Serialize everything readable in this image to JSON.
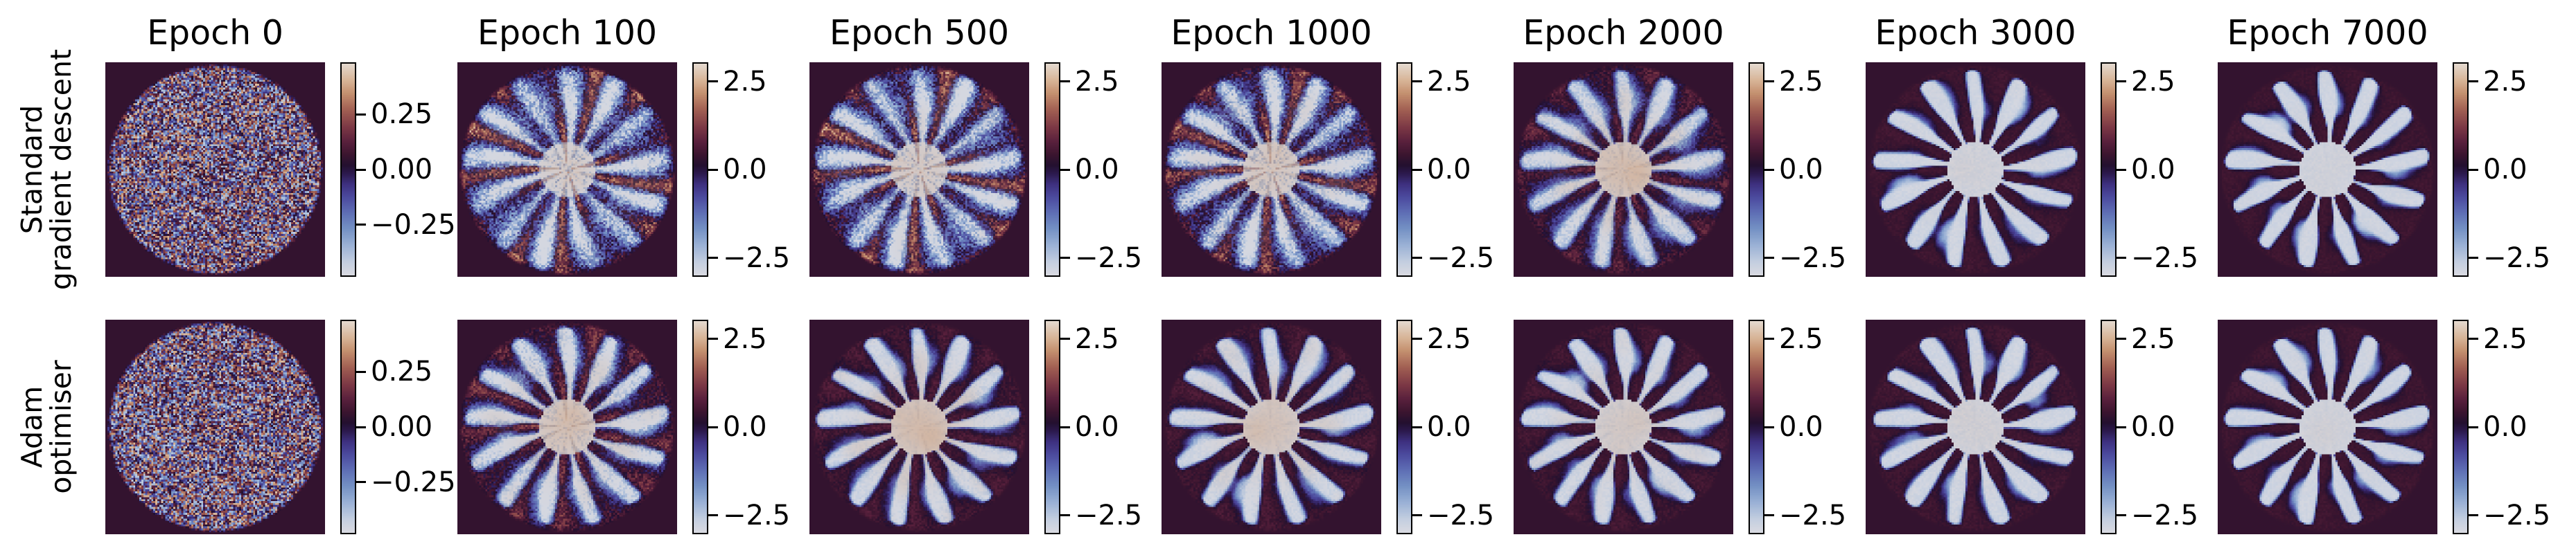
{
  "figure": {
    "background_color": "#ffffff",
    "text_color": "#000000",
    "rows": [
      {
        "label": "Standard\ngradient descent"
      },
      {
        "label": "Adam\noptimiser"
      }
    ],
    "columns": [
      "Epoch 0",
      "Epoch 100",
      "Epoch 500",
      "Epoch 1000",
      "Epoch 2000",
      "Epoch 3000",
      "Epoch 7000"
    ]
  },
  "chart_data": {
    "type": "heatmap",
    "title": "",
    "grid": {
      "n_rows": 2,
      "n_cols": 7
    },
    "row_labels": [
      "Standard gradient descent",
      "Adam optimiser"
    ],
    "column_titles": [
      "Epoch 0",
      "Epoch 100",
      "Epoch 500",
      "Epoch 1000",
      "Epoch 2000",
      "Epoch 3000",
      "Epoch 7000"
    ],
    "colormap": {
      "style": "diverging, light at both extremes, dark purple near zero (twilight-like)",
      "stops": [
        [
          0.0,
          "#d9dae1"
        ],
        [
          0.06,
          "#c5cfe0"
        ],
        [
          0.14,
          "#9bb2d6"
        ],
        [
          0.22,
          "#7491c4"
        ],
        [
          0.3,
          "#5d6cb4"
        ],
        [
          0.37,
          "#4c4a9e"
        ],
        [
          0.43,
          "#3e3180"
        ],
        [
          0.48,
          "#2c1a4e"
        ],
        [
          0.52,
          "#23102f"
        ],
        [
          0.57,
          "#3b152f"
        ],
        [
          0.63,
          "#58203c"
        ],
        [
          0.7,
          "#7c3845"
        ],
        [
          0.78,
          "#a05e52"
        ],
        [
          0.86,
          "#c4906f"
        ],
        [
          0.92,
          "#d7b395"
        ],
        [
          1.0,
          "#e4d9cf"
        ]
      ]
    },
    "panels": [
      {
        "row": 0,
        "col": 0,
        "optimizer": "Standard gradient descent",
        "epoch": 0,
        "title": "Epoch 0",
        "vmin": -0.48,
        "vmax": 0.48,
        "tick_values": [
          0.25,
          0.0,
          -0.25
        ],
        "tick_labels": [
          "0.25",
          "0.00",
          "−0.25"
        ],
        "render": {
          "mode": "noise",
          "noise": 0.88,
          "soft": 0,
          "maze": 0,
          "warm": 0,
          "seed": 11
        }
      },
      {
        "row": 0,
        "col": 1,
        "optimizer": "Standard gradient descent",
        "epoch": 100,
        "title": "Epoch 100",
        "vmin": -3.0,
        "vmax": 3.0,
        "tick_values": [
          2.5,
          0.0,
          -2.5
        ],
        "tick_labels": [
          "2.5",
          "0.0",
          "−2.5"
        ],
        "render": {
          "mode": "gear",
          "noise": 0.3,
          "soft": 0.85,
          "maze": 0.5,
          "warm": 0.22,
          "seed": 21
        }
      },
      {
        "row": 0,
        "col": 2,
        "optimizer": "Standard gradient descent",
        "epoch": 500,
        "title": "Epoch 500",
        "vmin": -3.0,
        "vmax": 3.0,
        "tick_values": [
          2.5,
          0.0,
          -2.5
        ],
        "tick_labels": [
          "2.5",
          "0.0",
          "−2.5"
        ],
        "render": {
          "mode": "gear",
          "noise": 0.28,
          "soft": 0.7,
          "maze": 0.46,
          "warm": 0.28,
          "seed": 31
        }
      },
      {
        "row": 0,
        "col": 3,
        "optimizer": "Standard gradient descent",
        "epoch": 1000,
        "title": "Epoch 1000",
        "vmin": -3.0,
        "vmax": 3.0,
        "tick_values": [
          2.5,
          0.0,
          -2.5
        ],
        "tick_labels": [
          "2.5",
          "0.0",
          "−2.5"
        ],
        "render": {
          "mode": "gear",
          "noise": 0.26,
          "soft": 0.58,
          "maze": 0.4,
          "warm": 0.32,
          "seed": 41
        }
      },
      {
        "row": 0,
        "col": 4,
        "optimizer": "Standard gradient descent",
        "epoch": 2000,
        "title": "Epoch 2000",
        "vmin": -3.0,
        "vmax": 3.0,
        "tick_values": [
          2.5,
          0.0,
          -2.5
        ],
        "tick_labels": [
          "2.5",
          "0.0",
          "−2.5"
        ],
        "render": {
          "mode": "gear",
          "noise": 0.13,
          "soft": 0.34,
          "maze": 0.14,
          "warm": 0.5,
          "seed": 51
        }
      },
      {
        "row": 0,
        "col": 5,
        "optimizer": "Standard gradient descent",
        "epoch": 3000,
        "title": "Epoch 3000",
        "vmin": -3.0,
        "vmax": 3.0,
        "tick_values": [
          2.5,
          0.0,
          -2.5
        ],
        "tick_labels": [
          "2.5",
          "0.0",
          "−2.5"
        ],
        "render": {
          "mode": "gear",
          "noise": 0.035,
          "soft": 0.15,
          "maze": 0.02,
          "warm": 0.1,
          "seed": 61
        }
      },
      {
        "row": 0,
        "col": 6,
        "optimizer": "Standard gradient descent",
        "epoch": 7000,
        "title": "Epoch 7000",
        "vmin": -3.0,
        "vmax": 3.0,
        "tick_values": [
          2.5,
          0.0,
          -2.5
        ],
        "tick_labels": [
          "2.5",
          "0.0",
          "−2.5"
        ],
        "render": {
          "mode": "gear",
          "noise": 0.03,
          "soft": 0.14,
          "maze": 0.015,
          "warm": 0.08,
          "seed": 71
        }
      },
      {
        "row": 1,
        "col": 0,
        "optimizer": "Adam optimiser",
        "epoch": 0,
        "title": "",
        "vmin": -0.48,
        "vmax": 0.48,
        "tick_values": [
          0.25,
          0.0,
          -0.25
        ],
        "tick_labels": [
          "0.25",
          "0.00",
          "−0.25"
        ],
        "render": {
          "mode": "noise",
          "noise": 0.88,
          "soft": 0,
          "maze": 0,
          "warm": 0,
          "seed": 12
        }
      },
      {
        "row": 1,
        "col": 1,
        "optimizer": "Adam optimiser",
        "epoch": 100,
        "title": "",
        "vmin": -3.0,
        "vmax": 3.0,
        "tick_values": [
          2.5,
          0.0,
          -2.5
        ],
        "tick_labels": [
          "2.5",
          "0.0",
          "−2.5"
        ],
        "render": {
          "mode": "gear",
          "noise": 0.17,
          "soft": 0.3,
          "maze": 0.22,
          "warm": 0.42,
          "seed": 22
        }
      },
      {
        "row": 1,
        "col": 2,
        "optimizer": "Adam optimiser",
        "epoch": 500,
        "title": "",
        "vmin": -3.0,
        "vmax": 3.0,
        "tick_values": [
          2.5,
          0.0,
          -2.5
        ],
        "tick_labels": [
          "2.5",
          "0.0",
          "−2.5"
        ],
        "render": {
          "mode": "gear",
          "noise": 0.07,
          "soft": 0.2,
          "maze": 0.07,
          "warm": 0.52,
          "seed": 32
        }
      },
      {
        "row": 1,
        "col": 3,
        "optimizer": "Adam optimiser",
        "epoch": 1000,
        "title": "",
        "vmin": -3.0,
        "vmax": 3.0,
        "tick_values": [
          2.5,
          0.0,
          -2.5
        ],
        "tick_labels": [
          "2.5",
          "0.0",
          "−2.5"
        ],
        "render": {
          "mode": "gear",
          "noise": 0.06,
          "soft": 0.19,
          "maze": 0.05,
          "warm": 0.4,
          "seed": 42
        }
      },
      {
        "row": 1,
        "col": 4,
        "optimizer": "Adam optimiser",
        "epoch": 2000,
        "title": "",
        "vmin": -3.0,
        "vmax": 3.0,
        "tick_values": [
          2.5,
          0.0,
          -2.5
        ],
        "tick_labels": [
          "2.5",
          "0.0",
          "−2.5"
        ],
        "render": {
          "mode": "gear",
          "noise": 0.05,
          "soft": 0.17,
          "maze": 0.04,
          "warm": 0.28,
          "seed": 52
        }
      },
      {
        "row": 1,
        "col": 5,
        "optimizer": "Adam optimiser",
        "epoch": 3000,
        "title": "",
        "vmin": -3.0,
        "vmax": 3.0,
        "tick_values": [
          2.5,
          0.0,
          -2.5
        ],
        "tick_labels": [
          "2.5",
          "0.0",
          "−2.5"
        ],
        "render": {
          "mode": "gear",
          "noise": 0.04,
          "soft": 0.15,
          "maze": 0.02,
          "warm": 0.14,
          "seed": 62
        }
      },
      {
        "row": 1,
        "col": 6,
        "optimizer": "Adam optimiser",
        "epoch": 7000,
        "title": "",
        "vmin": -3.0,
        "vmax": 3.0,
        "tick_values": [
          2.5,
          0.0,
          -2.5
        ],
        "tick_labels": [
          "2.5",
          "0.0",
          "−2.5"
        ],
        "render": {
          "mode": "gear",
          "noise": 0.03,
          "soft": 0.14,
          "maze": 0.015,
          "warm": 0.1,
          "seed": 72
        }
      }
    ]
  }
}
